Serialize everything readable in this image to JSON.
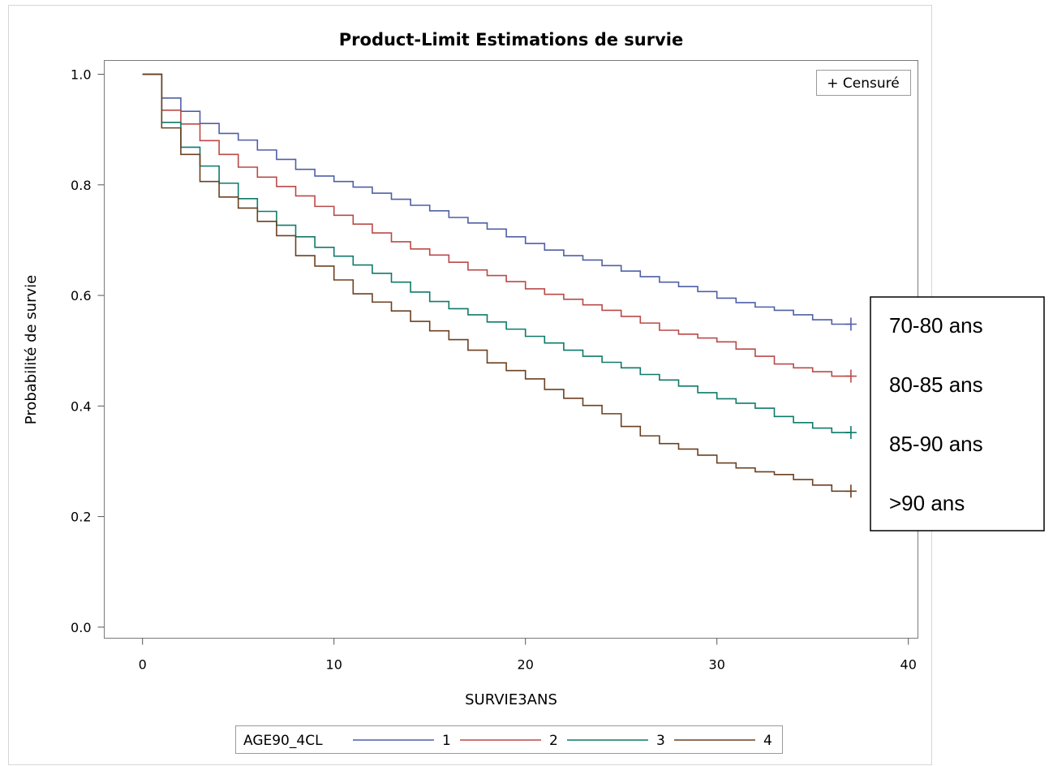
{
  "chart_data": {
    "type": "line",
    "title": "Product-Limit Estimations de survie",
    "xlabel": "SURVIE3ANS",
    "ylabel": "Probabilité de survie",
    "xlim": [
      -2,
      40.5
    ],
    "ylim": [
      -0.02,
      1.025
    ],
    "x_ticks": [
      0,
      10,
      20,
      30,
      40
    ],
    "x_tick_labels": [
      "0",
      "10",
      "20",
      "30",
      "40"
    ],
    "y_ticks": [
      0.0,
      0.2,
      0.4,
      0.6,
      0.8,
      1.0
    ],
    "y_tick_labels": [
      "0.0",
      "0.2",
      "0.4",
      "0.6",
      "0.8",
      "1.0"
    ],
    "grid": false,
    "step": true,
    "censor_legend": "+ Censuré",
    "legend_title": "AGE90_4CL",
    "legend_position": "bottom",
    "series": [
      {
        "name": "1",
        "color": "#4f5fa5",
        "x": [
          0,
          1,
          2,
          3,
          4,
          5,
          6,
          7,
          8,
          9,
          10,
          11,
          12,
          13,
          14,
          15,
          16,
          17,
          18,
          19,
          20,
          21,
          22,
          23,
          24,
          25,
          26,
          27,
          28,
          29,
          30,
          31,
          32,
          33,
          34,
          35,
          36,
          37
        ],
        "y": [
          1.0,
          0.957,
          0.933,
          0.911,
          0.893,
          0.881,
          0.863,
          0.846,
          0.828,
          0.816,
          0.806,
          0.796,
          0.785,
          0.774,
          0.763,
          0.753,
          0.741,
          0.731,
          0.72,
          0.706,
          0.694,
          0.682,
          0.672,
          0.664,
          0.654,
          0.644,
          0.634,
          0.624,
          0.616,
          0.607,
          0.595,
          0.587,
          0.579,
          0.573,
          0.565,
          0.556,
          0.548,
          0.548
        ],
        "censor_x": 37,
        "censor_y": 0.548
      },
      {
        "name": "2",
        "color": "#b94a48",
        "x": [
          0,
          1,
          2,
          3,
          4,
          5,
          6,
          7,
          8,
          9,
          10,
          11,
          12,
          13,
          14,
          15,
          16,
          17,
          18,
          19,
          20,
          21,
          22,
          23,
          24,
          25,
          26,
          27,
          28,
          29,
          30,
          31,
          32,
          33,
          34,
          35,
          36,
          37
        ],
        "y": [
          1.0,
          0.935,
          0.91,
          0.88,
          0.855,
          0.832,
          0.814,
          0.797,
          0.78,
          0.761,
          0.745,
          0.729,
          0.713,
          0.697,
          0.684,
          0.673,
          0.66,
          0.646,
          0.636,
          0.625,
          0.612,
          0.602,
          0.593,
          0.583,
          0.573,
          0.562,
          0.55,
          0.537,
          0.53,
          0.523,
          0.516,
          0.503,
          0.49,
          0.476,
          0.469,
          0.462,
          0.454,
          0.454
        ],
        "censor_x": 37,
        "censor_y": 0.454
      },
      {
        "name": "3",
        "color": "#0f7a6a",
        "x": [
          0,
          1,
          2,
          3,
          4,
          5,
          6,
          7,
          8,
          9,
          10,
          11,
          12,
          13,
          14,
          15,
          16,
          17,
          18,
          19,
          20,
          21,
          22,
          23,
          24,
          25,
          26,
          27,
          28,
          29,
          30,
          31,
          32,
          33,
          34,
          35,
          36,
          37
        ],
        "y": [
          1.0,
          0.913,
          0.868,
          0.834,
          0.803,
          0.775,
          0.752,
          0.727,
          0.706,
          0.687,
          0.671,
          0.655,
          0.64,
          0.624,
          0.606,
          0.589,
          0.576,
          0.565,
          0.552,
          0.539,
          0.526,
          0.514,
          0.501,
          0.49,
          0.479,
          0.469,
          0.457,
          0.447,
          0.436,
          0.424,
          0.413,
          0.405,
          0.396,
          0.381,
          0.37,
          0.36,
          0.352,
          0.352
        ],
        "censor_x": 37,
        "censor_y": 0.352
      },
      {
        "name": "4",
        "color": "#6b4020",
        "x": [
          0,
          1,
          2,
          3,
          4,
          5,
          6,
          7,
          8,
          9,
          10,
          11,
          12,
          13,
          14,
          15,
          16,
          17,
          18,
          19,
          20,
          21,
          22,
          23,
          24,
          25,
          26,
          27,
          28,
          29,
          30,
          31,
          32,
          33,
          34,
          35,
          36,
          37
        ],
        "y": [
          1.0,
          0.903,
          0.855,
          0.806,
          0.778,
          0.758,
          0.734,
          0.708,
          0.672,
          0.653,
          0.628,
          0.603,
          0.588,
          0.572,
          0.553,
          0.536,
          0.52,
          0.501,
          0.478,
          0.464,
          0.449,
          0.43,
          0.414,
          0.401,
          0.386,
          0.363,
          0.346,
          0.332,
          0.322,
          0.311,
          0.297,
          0.288,
          0.281,
          0.276,
          0.267,
          0.257,
          0.246,
          0.246
        ],
        "censor_x": 37,
        "censor_y": 0.246
      }
    ],
    "annotation_box": {
      "lines": [
        "70-80 ans",
        "80-85 ans",
        "85-90 ans",
        ">90 ans"
      ]
    }
  }
}
